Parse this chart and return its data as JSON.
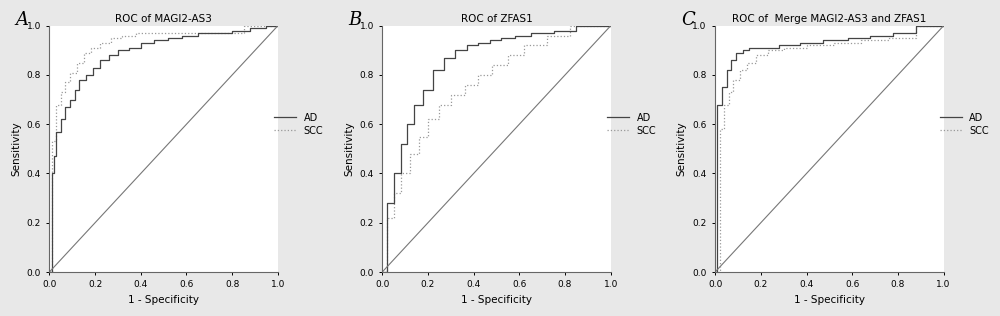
{
  "panels": [
    {
      "label": "A",
      "title": "ROC of MAGI2-AS3",
      "ad_curve": {
        "x": [
          0,
          0.01,
          0.01,
          0.02,
          0.02,
          0.03,
          0.03,
          0.05,
          0.05,
          0.07,
          0.07,
          0.09,
          0.09,
          0.11,
          0.11,
          0.13,
          0.13,
          0.16,
          0.16,
          0.19,
          0.19,
          0.22,
          0.22,
          0.26,
          0.26,
          0.3,
          0.3,
          0.35,
          0.35,
          0.4,
          0.4,
          0.46,
          0.46,
          0.52,
          0.52,
          0.58,
          0.58,
          0.65,
          0.65,
          0.72,
          0.72,
          0.8,
          0.8,
          0.88,
          0.88,
          0.95,
          0.95,
          1.0
        ],
        "y": [
          0,
          0,
          0.4,
          0.4,
          0.47,
          0.47,
          0.57,
          0.57,
          0.62,
          0.62,
          0.67,
          0.67,
          0.7,
          0.7,
          0.74,
          0.74,
          0.78,
          0.78,
          0.8,
          0.8,
          0.83,
          0.83,
          0.86,
          0.86,
          0.88,
          0.88,
          0.9,
          0.9,
          0.91,
          0.91,
          0.93,
          0.93,
          0.94,
          0.94,
          0.95,
          0.95,
          0.96,
          0.96,
          0.97,
          0.97,
          0.97,
          0.97,
          0.98,
          0.98,
          0.99,
          0.99,
          1.0,
          1.0
        ]
      },
      "scc_curve": {
        "x": [
          0,
          0.01,
          0.01,
          0.03,
          0.03,
          0.05,
          0.05,
          0.07,
          0.07,
          0.09,
          0.09,
          0.12,
          0.12,
          0.15,
          0.15,
          0.18,
          0.18,
          0.22,
          0.22,
          0.27,
          0.27,
          0.32,
          0.32,
          0.38,
          0.38,
          0.44,
          0.44,
          0.52,
          0.52,
          0.6,
          0.6,
          0.68,
          0.68,
          0.76,
          0.76,
          0.85,
          0.85,
          1.0
        ],
        "y": [
          0,
          0,
          0.53,
          0.53,
          0.68,
          0.68,
          0.73,
          0.73,
          0.77,
          0.77,
          0.81,
          0.81,
          0.85,
          0.85,
          0.89,
          0.89,
          0.91,
          0.91,
          0.93,
          0.93,
          0.95,
          0.95,
          0.96,
          0.96,
          0.97,
          0.97,
          0.97,
          0.97,
          0.97,
          0.97,
          0.97,
          0.97,
          0.97,
          0.97,
          0.97,
          0.97,
          1.0,
          1.0
        ]
      }
    },
    {
      "label": "B",
      "title": "ROC of ZFAS1",
      "ad_curve": {
        "x": [
          0,
          0.02,
          0.02,
          0.05,
          0.05,
          0.08,
          0.08,
          0.11,
          0.11,
          0.14,
          0.14,
          0.18,
          0.18,
          0.22,
          0.22,
          0.27,
          0.27,
          0.32,
          0.32,
          0.37,
          0.37,
          0.42,
          0.42,
          0.47,
          0.47,
          0.52,
          0.52,
          0.58,
          0.58,
          0.65,
          0.65,
          0.75,
          0.75,
          0.85,
          0.85,
          1.0
        ],
        "y": [
          0,
          0,
          0.28,
          0.28,
          0.4,
          0.4,
          0.52,
          0.52,
          0.6,
          0.6,
          0.68,
          0.68,
          0.74,
          0.74,
          0.82,
          0.82,
          0.87,
          0.87,
          0.9,
          0.9,
          0.92,
          0.92,
          0.93,
          0.93,
          0.94,
          0.94,
          0.95,
          0.95,
          0.96,
          0.96,
          0.97,
          0.97,
          0.98,
          0.98,
          1.0,
          1.0
        ]
      },
      "scc_curve": {
        "x": [
          0,
          0.02,
          0.02,
          0.05,
          0.05,
          0.08,
          0.08,
          0.12,
          0.12,
          0.16,
          0.16,
          0.2,
          0.2,
          0.25,
          0.25,
          0.3,
          0.3,
          0.36,
          0.36,
          0.42,
          0.42,
          0.48,
          0.48,
          0.55,
          0.55,
          0.62,
          0.62,
          0.72,
          0.72,
          0.82,
          0.82,
          1.0
        ],
        "y": [
          0,
          0,
          0.22,
          0.22,
          0.32,
          0.32,
          0.4,
          0.4,
          0.48,
          0.48,
          0.55,
          0.55,
          0.62,
          0.62,
          0.68,
          0.68,
          0.72,
          0.72,
          0.76,
          0.76,
          0.8,
          0.8,
          0.84,
          0.84,
          0.88,
          0.88,
          0.92,
          0.92,
          0.96,
          0.96,
          1.0,
          1.0
        ]
      }
    },
    {
      "label": "C",
      "title": "ROC of  Merge MAGI2-AS3 and ZFAS1",
      "ad_curve": {
        "x": [
          0,
          0.01,
          0.01,
          0.03,
          0.03,
          0.05,
          0.05,
          0.07,
          0.07,
          0.09,
          0.09,
          0.12,
          0.12,
          0.15,
          0.15,
          0.2,
          0.2,
          0.28,
          0.28,
          0.37,
          0.37,
          0.47,
          0.47,
          0.58,
          0.58,
          0.68,
          0.68,
          0.78,
          0.78,
          0.88,
          0.88,
          1.0
        ],
        "y": [
          0,
          0,
          0.68,
          0.68,
          0.75,
          0.75,
          0.82,
          0.82,
          0.86,
          0.86,
          0.89,
          0.89,
          0.9,
          0.9,
          0.91,
          0.91,
          0.91,
          0.91,
          0.92,
          0.92,
          0.93,
          0.93,
          0.94,
          0.94,
          0.95,
          0.95,
          0.96,
          0.96,
          0.97,
          0.97,
          1.0,
          1.0
        ]
      },
      "scc_curve": {
        "x": [
          0,
          0.02,
          0.02,
          0.04,
          0.04,
          0.06,
          0.06,
          0.08,
          0.08,
          0.11,
          0.11,
          0.14,
          0.14,
          0.18,
          0.18,
          0.23,
          0.23,
          0.3,
          0.3,
          0.4,
          0.4,
          0.52,
          0.52,
          0.64,
          0.64,
          0.76,
          0.76,
          0.88,
          0.88,
          1.0
        ],
        "y": [
          0,
          0,
          0.58,
          0.58,
          0.68,
          0.68,
          0.73,
          0.73,
          0.78,
          0.78,
          0.82,
          0.82,
          0.85,
          0.85,
          0.88,
          0.88,
          0.9,
          0.9,
          0.91,
          0.91,
          0.92,
          0.92,
          0.93,
          0.93,
          0.94,
          0.94,
          0.95,
          0.95,
          1.0,
          1.0
        ]
      }
    }
  ],
  "ad_color": "#444444",
  "scc_color": "#999999",
  "diagonal_color": "#777777",
  "xlabel": "1 - Specificity",
  "ylabel": "Sensitivity",
  "tick_labels": [
    "0.0",
    "0.2",
    "0.4",
    "0.6",
    "0.8",
    "1.0"
  ],
  "tick_vals": [
    0.0,
    0.2,
    0.4,
    0.6,
    0.8,
    1.0
  ],
  "bg_color": "#ffffff",
  "fig_bg_color": "#e8e8e8",
  "label_fontsize": 7.5,
  "title_fontsize": 7.5,
  "panel_label_fontsize": 13,
  "legend_fontsize": 7,
  "tick_fontsize": 6.5
}
